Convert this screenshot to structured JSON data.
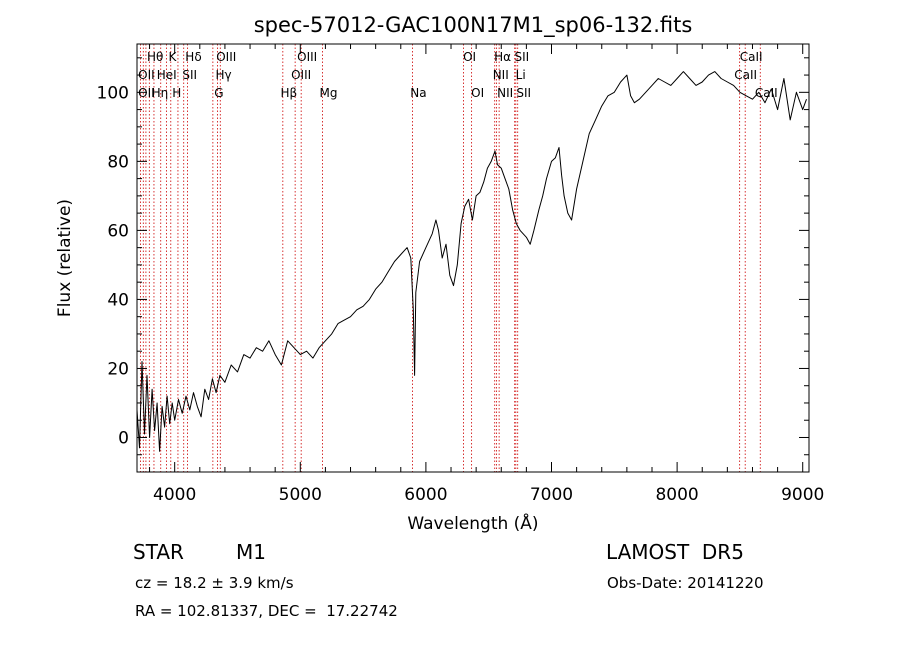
{
  "chart_data": {
    "type": "line",
    "title": "spec-57012-GAC100N17M1_sp06-132.fits",
    "xlabel": "Wavelength (Å)",
    "ylabel": "Flux (relative)",
    "xlim": [
      3700,
      9050
    ],
    "ylim": [
      -10,
      114
    ],
    "xticks": [
      4000,
      5000,
      6000,
      7000,
      8000,
      9000
    ],
    "yticks": [
      0,
      20,
      40,
      60,
      80,
      100
    ],
    "grid": false,
    "legend": "none",
    "series": [
      {
        "color": "#000000",
        "points": [
          [
            3700,
            8
          ],
          [
            3720,
            -3
          ],
          [
            3740,
            22
          ],
          [
            3760,
            1
          ],
          [
            3780,
            18
          ],
          [
            3800,
            0
          ],
          [
            3820,
            14
          ],
          [
            3840,
            2
          ],
          [
            3860,
            10
          ],
          [
            3880,
            -4
          ],
          [
            3900,
            9
          ],
          [
            3920,
            3
          ],
          [
            3940,
            12
          ],
          [
            3960,
            4
          ],
          [
            3980,
            10
          ],
          [
            4000,
            5
          ],
          [
            4030,
            11
          ],
          [
            4060,
            7
          ],
          [
            4090,
            12
          ],
          [
            4120,
            8
          ],
          [
            4150,
            13
          ],
          [
            4180,
            9
          ],
          [
            4210,
            6
          ],
          [
            4240,
            14
          ],
          [
            4270,
            11
          ],
          [
            4300,
            17
          ],
          [
            4330,
            13
          ],
          [
            4360,
            18
          ],
          [
            4400,
            16
          ],
          [
            4450,
            21
          ],
          [
            4500,
            19
          ],
          [
            4550,
            24
          ],
          [
            4600,
            23
          ],
          [
            4650,
            26
          ],
          [
            4700,
            25
          ],
          [
            4750,
            28
          ],
          [
            4800,
            24
          ],
          [
            4850,
            21
          ],
          [
            4900,
            28
          ],
          [
            4950,
            26
          ],
          [
            5000,
            24
          ],
          [
            5050,
            25
          ],
          [
            5100,
            23
          ],
          [
            5150,
            26
          ],
          [
            5200,
            28
          ],
          [
            5250,
            30
          ],
          [
            5300,
            33
          ],
          [
            5350,
            34
          ],
          [
            5400,
            35
          ],
          [
            5450,
            37
          ],
          [
            5500,
            38
          ],
          [
            5550,
            40
          ],
          [
            5600,
            43
          ],
          [
            5650,
            45
          ],
          [
            5700,
            48
          ],
          [
            5750,
            51
          ],
          [
            5800,
            53
          ],
          [
            5850,
            55
          ],
          [
            5880,
            52
          ],
          [
            5900,
            37
          ],
          [
            5910,
            18
          ],
          [
            5920,
            42
          ],
          [
            5950,
            51
          ],
          [
            6000,
            55
          ],
          [
            6050,
            59
          ],
          [
            6080,
            63
          ],
          [
            6100,
            60
          ],
          [
            6130,
            52
          ],
          [
            6160,
            56
          ],
          [
            6190,
            47
          ],
          [
            6220,
            44
          ],
          [
            6250,
            50
          ],
          [
            6280,
            62
          ],
          [
            6310,
            67
          ],
          [
            6340,
            69
          ],
          [
            6370,
            63
          ],
          [
            6400,
            70
          ],
          [
            6430,
            71
          ],
          [
            6460,
            74
          ],
          [
            6490,
            78
          ],
          [
            6520,
            80
          ],
          [
            6550,
            83
          ],
          [
            6570,
            79
          ],
          [
            6600,
            78
          ],
          [
            6630,
            75
          ],
          [
            6660,
            72
          ],
          [
            6690,
            66
          ],
          [
            6720,
            62
          ],
          [
            6750,
            60
          ],
          [
            6800,
            58
          ],
          [
            6830,
            56
          ],
          [
            6860,
            60
          ],
          [
            6900,
            66
          ],
          [
            6930,
            70
          ],
          [
            6960,
            75
          ],
          [
            7000,
            80
          ],
          [
            7030,
            81
          ],
          [
            7060,
            84
          ],
          [
            7080,
            76
          ],
          [
            7100,
            70
          ],
          [
            7130,
            65
          ],
          [
            7160,
            63
          ],
          [
            7200,
            72
          ],
          [
            7250,
            80
          ],
          [
            7300,
            88
          ],
          [
            7350,
            92
          ],
          [
            7400,
            96
          ],
          [
            7450,
            99
          ],
          [
            7500,
            100
          ],
          [
            7550,
            103
          ],
          [
            7600,
            105
          ],
          [
            7630,
            99
          ],
          [
            7660,
            97
          ],
          [
            7700,
            98
          ],
          [
            7750,
            100
          ],
          [
            7800,
            102
          ],
          [
            7850,
            104
          ],
          [
            7900,
            103
          ],
          [
            7950,
            102
          ],
          [
            8000,
            104
          ],
          [
            8050,
            106
          ],
          [
            8100,
            104
          ],
          [
            8150,
            102
          ],
          [
            8200,
            103
          ],
          [
            8250,
            105
          ],
          [
            8300,
            106
          ],
          [
            8350,
            104
          ],
          [
            8400,
            103
          ],
          [
            8450,
            102
          ],
          [
            8500,
            100
          ],
          [
            8550,
            99
          ],
          [
            8600,
            98
          ],
          [
            8650,
            100
          ],
          [
            8700,
            97
          ],
          [
            8750,
            101
          ],
          [
            8800,
            95
          ],
          [
            8850,
            104
          ],
          [
            8900,
            92
          ],
          [
            8950,
            100
          ],
          [
            9000,
            95
          ],
          [
            9030,
            98
          ]
        ]
      }
    ],
    "lines": [
      {
        "wave": 3727
      },
      {
        "wave": 3750
      },
      {
        "wave": 3771
      },
      {
        "wave": 3798
      },
      {
        "wave": 3835
      },
      {
        "wave": 3889
      },
      {
        "wave": 3934
      },
      {
        "wave": 3969
      },
      {
        "wave": 4026
      },
      {
        "wave": 4072
      },
      {
        "wave": 4102
      },
      {
        "wave": 4304
      },
      {
        "wave": 4341
      },
      {
        "wave": 4363
      },
      {
        "wave": 4861
      },
      {
        "wave": 4959
      },
      {
        "wave": 5007
      },
      {
        "wave": 5177
      },
      {
        "wave": 5893
      },
      {
        "wave": 6300
      },
      {
        "wave": 6364
      },
      {
        "wave": 6548
      },
      {
        "wave": 6563
      },
      {
        "wave": 6583
      },
      {
        "wave": 6707
      },
      {
        "wave": 6716
      },
      {
        "wave": 6731
      },
      {
        "wave": 8498
      },
      {
        "wave": 8542
      },
      {
        "wave": 8662
      }
    ],
    "line_labels": [
      {
        "text": "Hθ",
        "wave": 3797,
        "row": 0
      },
      {
        "text": "K",
        "wave": 3934,
        "row": 0
      },
      {
        "text": "Hδ",
        "wave": 4102,
        "row": 0
      },
      {
        "text": "OIII",
        "wave": 4363,
        "row": 0
      },
      {
        "text": "OIII",
        "wave": 5007,
        "row": 0
      },
      {
        "text": "OI",
        "wave": 6300,
        "row": 0
      },
      {
        "text": "Hα",
        "wave": 6563,
        "row": 0
      },
      {
        "text": "SII",
        "wave": 6716,
        "row": 0
      },
      {
        "text": "CaII",
        "wave": 8542,
        "row": 0
      },
      {
        "text": "OII",
        "wave": 3727,
        "row": 1
      },
      {
        "text": "HeI",
        "wave": 3889,
        "row": 1
      },
      {
        "text": "SII",
        "wave": 4072,
        "row": 1
      },
      {
        "text": "Hγ",
        "wave": 4341,
        "row": 1
      },
      {
        "text": "OIII",
        "wave": 4959,
        "row": 1
      },
      {
        "text": "NII",
        "wave": 6548,
        "row": 1
      },
      {
        "text": "Li",
        "wave": 6707,
        "row": 1
      },
      {
        "text": "CaII",
        "wave": 8498,
        "row": 1
      },
      {
        "text": "OII",
        "wave": 3727,
        "row": 2
      },
      {
        "text": "Hη",
        "wave": 3835,
        "row": 2
      },
      {
        "text": "H",
        "wave": 3969,
        "row": 2
      },
      {
        "text": "G",
        "wave": 4304,
        "row": 2
      },
      {
        "text": "Hβ",
        "wave": 4861,
        "row": 2
      },
      {
        "text": "Mg",
        "wave": 5177,
        "row": 2
      },
      {
        "text": "Na",
        "wave": 5893,
        "row": 2
      },
      {
        "text": "OI",
        "wave": 6364,
        "row": 2
      },
      {
        "text": "NII",
        "wave": 6583,
        "row": 2
      },
      {
        "text": "SII",
        "wave": 6731,
        "row": 2
      },
      {
        "text": "CaII",
        "wave": 8662,
        "row": 2
      }
    ]
  },
  "info": {
    "object_class": "STAR",
    "subclass": "M1",
    "survey": "LAMOST  DR5",
    "redshift": "cz = 18.2 ± 3.9 km/s",
    "obs_date": "Obs-Date: 20141220",
    "coords": "RA = 102.81337, DEC =  17.22742"
  }
}
